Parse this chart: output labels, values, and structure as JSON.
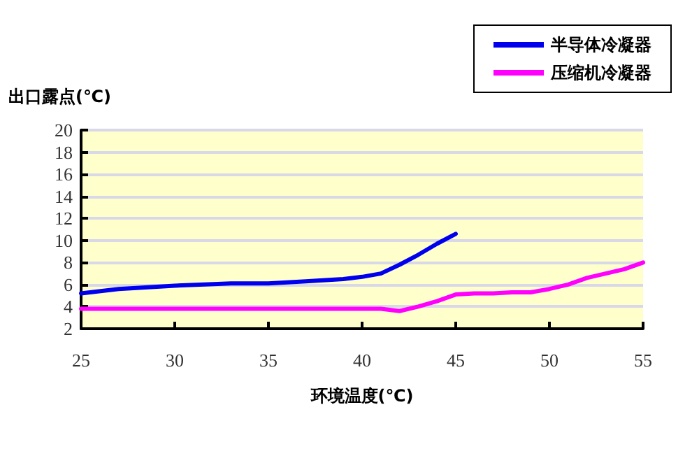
{
  "chart_data": {
    "type": "line",
    "xlabel": "环境温度(℃)",
    "ylabel": "出口露点(℃)",
    "xlim": [
      25,
      55
    ],
    "xticks": [
      25,
      30,
      35,
      40,
      45,
      50,
      55
    ],
    "ylim": [
      2,
      20
    ],
    "yticks": [
      2,
      4,
      6,
      8,
      10,
      12,
      14,
      16,
      18,
      20
    ],
    "grid": "y",
    "legend": "top right",
    "marker": "none",
    "line_style": "solid",
    "series": [
      {
        "name": "半导体冷凝器",
        "color": "#0000ee",
        "x": [
          25,
          27,
          30,
          33,
          35,
          37,
          39,
          40,
          41,
          42,
          43,
          44,
          45
        ],
        "values": [
          5.2,
          5.6,
          5.9,
          6.1,
          6.1,
          6.3,
          6.5,
          6.7,
          7.0,
          7.8,
          8.7,
          9.7,
          10.6
        ]
      },
      {
        "name": "压缩机冷凝器",
        "color": "#ff00ff",
        "x": [
          25,
          30,
          35,
          40,
          41,
          42,
          43,
          44,
          45,
          46,
          47,
          48,
          49,
          50,
          51,
          52,
          53,
          54,
          55
        ],
        "values": [
          3.8,
          3.8,
          3.8,
          3.8,
          3.8,
          3.6,
          4.0,
          4.5,
          5.1,
          5.2,
          5.2,
          5.3,
          5.3,
          5.6,
          6.0,
          6.6,
          7.0,
          7.4,
          8.0
        ]
      }
    ]
  }
}
